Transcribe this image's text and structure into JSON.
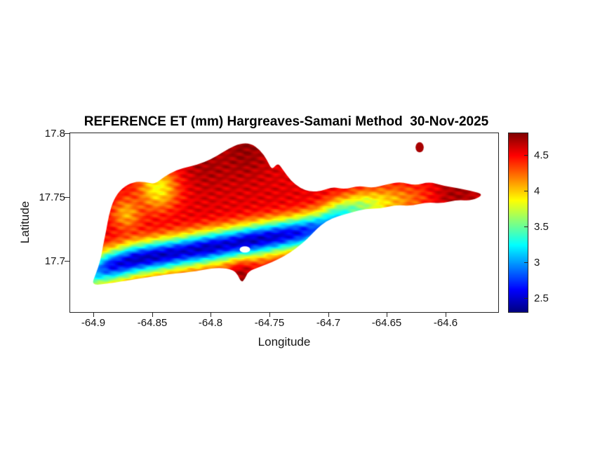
{
  "chart_data": {
    "type": "heatmap",
    "title": "REFERENCE ET (mm) Hargreaves-Samani Method  30-Nov-2025",
    "xlabel": "Longitude",
    "ylabel": "Latitude",
    "xlim": [
      -64.92,
      -64.555
    ],
    "ylim": [
      17.66,
      17.8
    ],
    "xticks": [
      -64.9,
      -64.85,
      -64.8,
      -64.75,
      -64.7,
      -64.65,
      -64.6
    ],
    "xtick_labels": [
      "-64.9",
      "-64.85",
      "-64.8",
      "-64.75",
      "-64.7",
      "-64.65",
      "-64.6"
    ],
    "yticks": [
      17.8,
      17.75,
      17.7
    ],
    "ytick_labels": [
      "17.8",
      "17.75",
      "17.7"
    ],
    "grid": false,
    "colorbar": {
      "colormap": "jet",
      "min": 2.3,
      "max": 4.8,
      "ticks": [
        4.5,
        4,
        3.5,
        3,
        2.5
      ],
      "tick_labels": [
        "4.5",
        "4",
        "3.5",
        "3",
        "2.5"
      ],
      "position": "right"
    },
    "value_units": "mm",
    "value_range_displayed": [
      2.45,
      4.75
    ],
    "island_outline": [
      [
        -64.902,
        17.681
      ],
      [
        -64.898,
        17.69
      ],
      [
        -64.894,
        17.701
      ],
      [
        -64.892,
        17.712
      ],
      [
        -64.889,
        17.725
      ],
      [
        -64.887,
        17.736
      ],
      [
        -64.883,
        17.748
      ],
      [
        -64.876,
        17.757
      ],
      [
        -64.866,
        17.762
      ],
      [
        -64.856,
        17.762
      ],
      [
        -64.848,
        17.76
      ],
      [
        -64.84,
        17.766
      ],
      [
        -64.83,
        17.771
      ],
      [
        -64.818,
        17.774
      ],
      [
        -64.806,
        17.777
      ],
      [
        -64.795,
        17.782
      ],
      [
        -64.785,
        17.788
      ],
      [
        -64.775,
        17.792
      ],
      [
        -64.766,
        17.792
      ],
      [
        -64.758,
        17.787
      ],
      [
        -64.752,
        17.779
      ],
      [
        -64.748,
        17.771
      ],
      [
        -64.743,
        17.777
      ],
      [
        -64.739,
        17.772
      ],
      [
        -64.732,
        17.763
      ],
      [
        -64.724,
        17.757
      ],
      [
        -64.715,
        17.754
      ],
      [
        -64.705,
        17.755
      ],
      [
        -64.696,
        17.758
      ],
      [
        -64.686,
        17.756
      ],
      [
        -64.674,
        17.759
      ],
      [
        -64.662,
        17.757
      ],
      [
        -64.65,
        17.76
      ],
      [
        -64.638,
        17.762
      ],
      [
        -64.626,
        17.759
      ],
      [
        -64.614,
        17.762
      ],
      [
        -64.602,
        17.759
      ],
      [
        -64.59,
        17.757
      ],
      [
        -64.578,
        17.755
      ],
      [
        -64.567,
        17.752
      ],
      [
        -64.578,
        17.747
      ],
      [
        -64.59,
        17.748
      ],
      [
        -64.603,
        17.745
      ],
      [
        -64.616,
        17.746
      ],
      [
        -64.629,
        17.743
      ],
      [
        -64.642,
        17.744
      ],
      [
        -64.655,
        17.741
      ],
      [
        -64.668,
        17.741
      ],
      [
        -64.68,
        17.738
      ],
      [
        -64.692,
        17.735
      ],
      [
        -64.702,
        17.731
      ],
      [
        -64.71,
        17.725
      ],
      [
        -64.718,
        17.717
      ],
      [
        -64.727,
        17.71
      ],
      [
        -64.737,
        17.704
      ],
      [
        -64.748,
        17.699
      ],
      [
        -64.759,
        17.695
      ],
      [
        -64.768,
        17.692
      ],
      [
        -64.771,
        17.686
      ],
      [
        -64.774,
        17.683
      ],
      [
        -64.777,
        17.689
      ],
      [
        -64.781,
        17.693
      ],
      [
        -64.793,
        17.695
      ],
      [
        -64.806,
        17.693
      ],
      [
        -64.82,
        17.691
      ],
      [
        -64.834,
        17.69
      ],
      [
        -64.848,
        17.688
      ],
      [
        -64.862,
        17.686
      ],
      [
        -64.876,
        17.684
      ],
      [
        -64.889,
        17.682
      ]
    ],
    "holes": [
      {
        "lon": -64.771,
        "lat": 17.709,
        "rx": 0.0045,
        "ry": 0.0025
      }
    ],
    "detached": [
      {
        "lon": -64.622,
        "lat": 17.789,
        "rx": 0.0035,
        "ry": 0.004,
        "v": 4.7
      }
    ],
    "field": {
      "base": 4.55,
      "sigma": 0.009,
      "noise": 0.07,
      "valley": [
        [
          -64.898,
          17.692,
          3.0
        ],
        [
          -64.885,
          17.696,
          2.6
        ],
        [
          -64.865,
          17.701,
          2.45
        ],
        [
          -64.845,
          17.704,
          2.45
        ],
        [
          -64.825,
          17.707,
          2.5
        ],
        [
          -64.805,
          17.71,
          2.45
        ],
        [
          -64.785,
          17.713,
          2.5
        ],
        [
          -64.765,
          17.716,
          2.45
        ],
        [
          -64.745,
          17.719,
          2.5
        ],
        [
          -64.725,
          17.722,
          2.6
        ],
        [
          -64.705,
          17.727,
          2.9
        ],
        [
          -64.69,
          17.735,
          3.2
        ],
        [
          -64.67,
          17.742,
          3.6
        ],
        [
          -64.65,
          17.746,
          3.95
        ],
        [
          -64.63,
          17.748,
          4.2
        ],
        [
          -64.61,
          17.75,
          4.4
        ]
      ],
      "patches": [
        {
          "lon": -64.845,
          "lat": 17.757,
          "v": 3.85,
          "r": 0.012
        },
        {
          "lon": -64.872,
          "lat": 17.737,
          "v": 4.05,
          "r": 0.009
        },
        {
          "lon": -64.772,
          "lat": 17.787,
          "v": 4.75,
          "r": 0.016
        },
        {
          "lon": -64.802,
          "lat": 17.776,
          "v": 4.7,
          "r": 0.014
        },
        {
          "lon": -64.59,
          "lat": 17.753,
          "v": 4.7,
          "r": 0.014
        },
        {
          "lon": -64.773,
          "lat": 17.687,
          "v": 4.72,
          "r": 0.007
        }
      ]
    }
  }
}
